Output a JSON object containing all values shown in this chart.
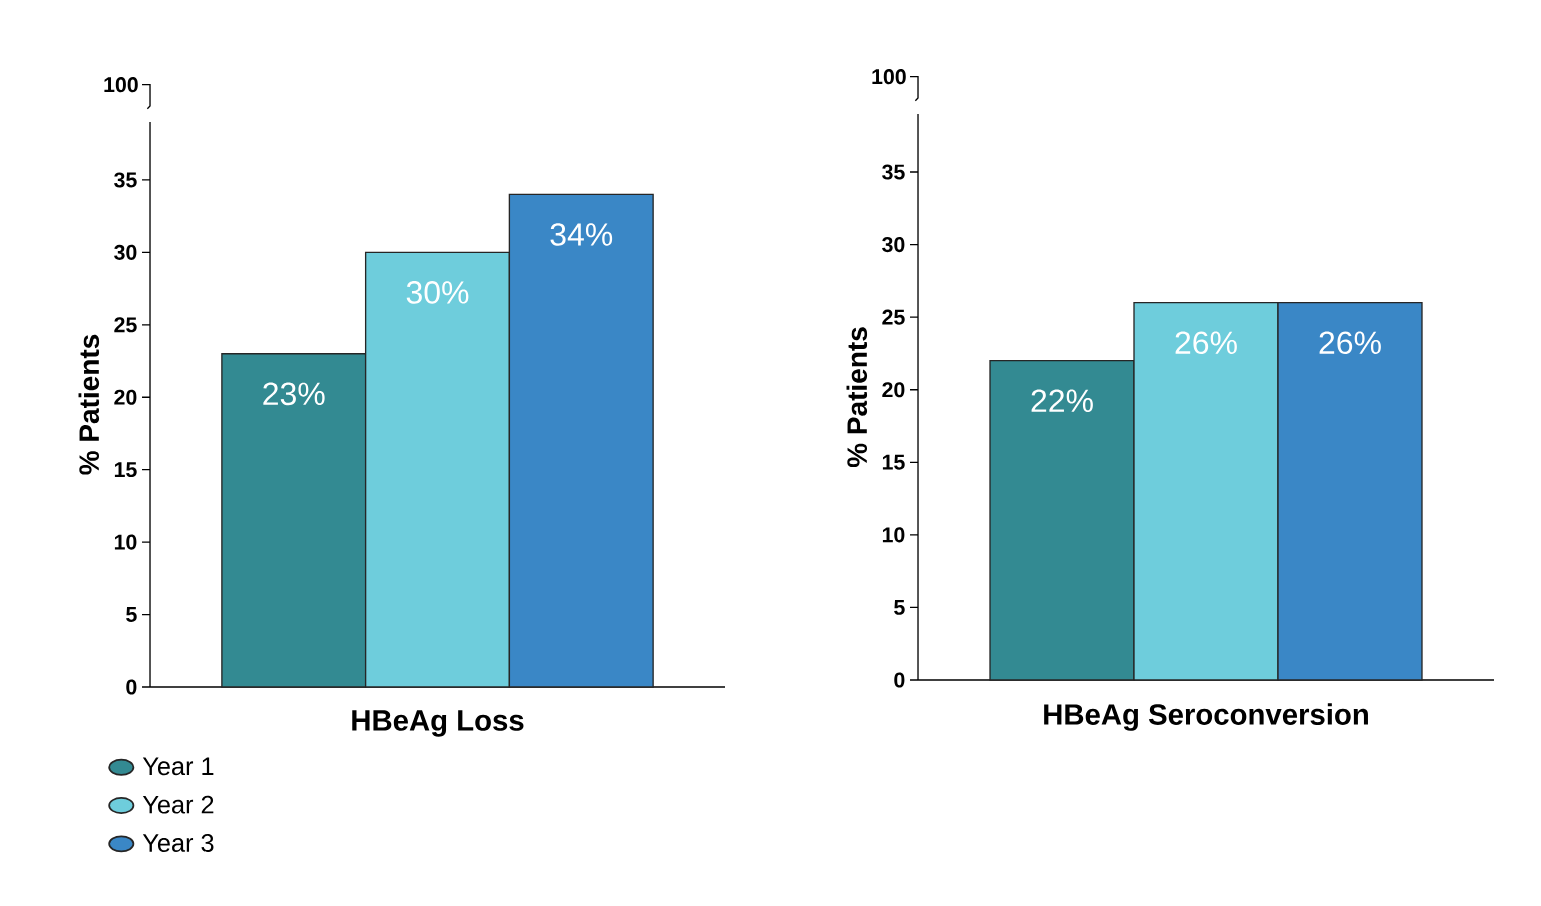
{
  "chart_data": [
    {
      "type": "bar",
      "xlabel": "HBeAg Loss",
      "ylabel": "% Patients",
      "categories": [
        null
      ],
      "series": [
        {
          "name": "Year 1",
          "color": "#338a92",
          "values": [
            23
          ],
          "value_labels": [
            "23%"
          ]
        },
        {
          "name": "Year 2",
          "color": "#6ecddc",
          "values": [
            30
          ],
          "value_labels": [
            "30%"
          ]
        },
        {
          "name": "Year 3",
          "color": "#3a87c6",
          "values": [
            34
          ],
          "value_labels": [
            "34%"
          ]
        }
      ],
      "ylim": [
        0,
        39
      ],
      "yticks": [
        0,
        5,
        10,
        15,
        20,
        25,
        30,
        35
      ],
      "annotations": [
        "100"
      ],
      "legend": "bottom"
    },
    {
      "type": "bar",
      "xlabel": "HBeAg Seroconversion",
      "ylabel": "% Patients",
      "categories": [
        null
      ],
      "series": [
        {
          "color": "#338a92",
          "values": [
            22
          ],
          "value_labels": [
            "22%"
          ]
        },
        {
          "color": "#6ecddc",
          "values": [
            26
          ],
          "value_labels": [
            "26%"
          ]
        },
        {
          "color": "#3a87c6",
          "values": [
            26
          ],
          "value_labels": [
            "26%"
          ]
        }
      ],
      "ylim": [
        0,
        39
      ],
      "yticks": [
        0,
        5,
        10,
        15,
        20,
        25,
        30,
        35
      ],
      "annotations": [
        "100"
      ]
    }
  ]
}
